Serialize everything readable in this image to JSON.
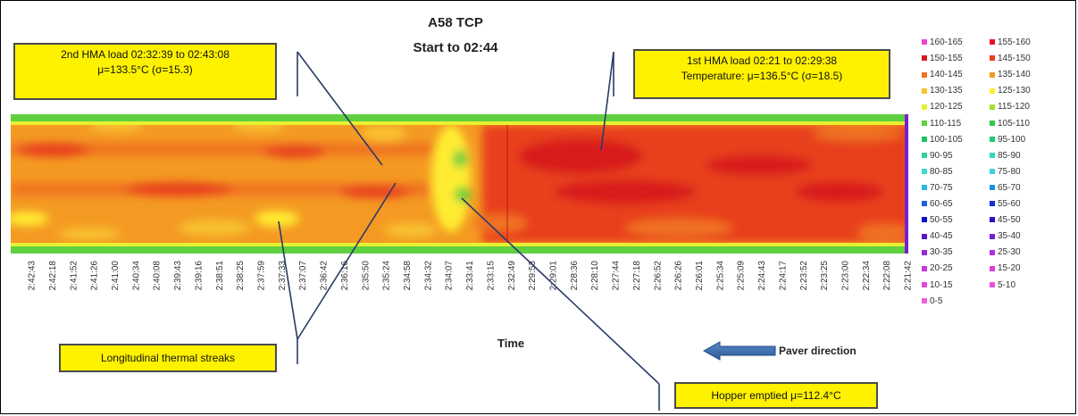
{
  "chart_data": {
    "type": "heatmap",
    "title": "A58 TCP",
    "subtitle": "Start to 02:44",
    "xlabel": "Time",
    "x_ticks": [
      "2:42:43",
      "2:42:18",
      "2:41:52",
      "2:41:26",
      "2:41:00",
      "2:40:34",
      "2:40:08",
      "2:39:43",
      "2:39:16",
      "2:38:51",
      "2:38:25",
      "2:37:59",
      "2:37:33",
      "2:37:07",
      "2:36:42",
      "2:36:16",
      "2:35:50",
      "2:35:24",
      "2:34:58",
      "2:34:32",
      "2:34:07",
      "2:33:41",
      "2:33:15",
      "2:32:49",
      "2:29:53",
      "2:29:01",
      "2:28:36",
      "2:28:10",
      "2:27:44",
      "2:27:18",
      "2:26:52",
      "2:26:26",
      "2:26:01",
      "2:25:34",
      "2:25:09",
      "2:24:43",
      "2:24:17",
      "2:23:52",
      "2:23:25",
      "2:23:00",
      "2:22:34",
      "2:22:08",
      "2:21:42"
    ],
    "legend_position": "right",
    "legend": [
      {
        "label": "160-165",
        "color": "#ee44cc"
      },
      {
        "label": "155-160",
        "color": "#e8102a"
      },
      {
        "label": "150-155",
        "color": "#d81a1a"
      },
      {
        "label": "145-150",
        "color": "#e8401e"
      },
      {
        "label": "140-145",
        "color": "#f07222"
      },
      {
        "label": "135-140",
        "color": "#f49a22"
      },
      {
        "label": "130-135",
        "color": "#f8c230"
      },
      {
        "label": "125-130",
        "color": "#ffec30"
      },
      {
        "label": "120-125",
        "color": "#e8f030"
      },
      {
        "label": "115-120",
        "color": "#a8e030"
      },
      {
        "label": "110-115",
        "color": "#60d040"
      },
      {
        "label": "105-110",
        "color": "#30c850"
      },
      {
        "label": "100-105",
        "color": "#20c060"
      },
      {
        "label": "95-100",
        "color": "#20c878"
      },
      {
        "label": "90-95",
        "color": "#30d0a0"
      },
      {
        "label": "85-90",
        "color": "#30d8b8"
      },
      {
        "label": "80-85",
        "color": "#40d8d0"
      },
      {
        "label": "75-80",
        "color": "#40d0e0"
      },
      {
        "label": "70-75",
        "color": "#30b8e0"
      },
      {
        "label": "65-70",
        "color": "#2090e0"
      },
      {
        "label": "60-65",
        "color": "#2060e0"
      },
      {
        "label": "55-60",
        "color": "#1830d8"
      },
      {
        "label": "50-55",
        "color": "#1010d0"
      },
      {
        "label": "45-50",
        "color": "#3010c8"
      },
      {
        "label": "40-45",
        "color": "#5818c8"
      },
      {
        "label": "35-40",
        "color": "#7820d0"
      },
      {
        "label": "30-35",
        "color": "#9828d8"
      },
      {
        "label": "25-30",
        "color": "#b030d8"
      },
      {
        "label": "20-25",
        "color": "#c838d8"
      },
      {
        "label": "15-20",
        "color": "#d840d8"
      },
      {
        "label": "10-15",
        "color": "#e048d8"
      },
      {
        "label": "5-10",
        "color": "#e850d8"
      },
      {
        "label": "0-5",
        "color": "#f060e0"
      }
    ]
  },
  "annotations": {
    "second_load_line1": "2nd HMA load 02:32:39  to 02:43:08",
    "second_load_line2": "μ=133.5°C (σ=15.3)",
    "first_load_line1": "1st HMA load 02:21  to 02:29:38",
    "first_load_line2": "Temperature: μ=136.5°C (σ=18.5)",
    "streaks": "Longitudinal thermal streaks",
    "hopper": "Hopper emptied μ=112.4°C",
    "paver_direction": "Paver direction"
  },
  "colors": {
    "callout_fill": "#fff200",
    "arrow": "#3a6aa8"
  }
}
